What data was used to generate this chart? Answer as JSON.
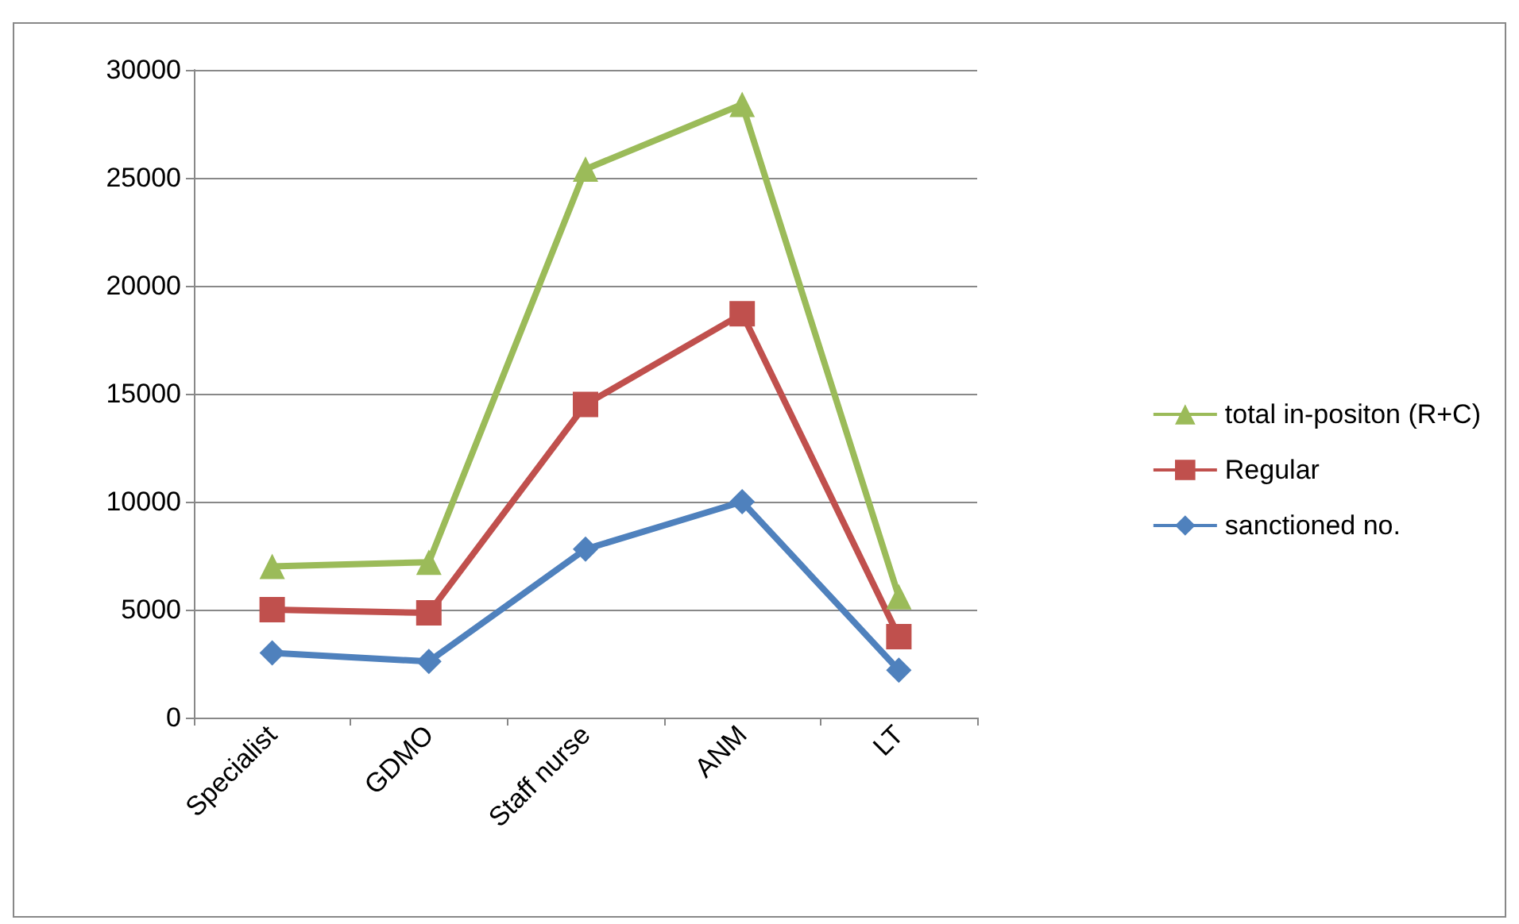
{
  "chart_data": {
    "type": "line",
    "categories": [
      "Specialist",
      "GDMO",
      "Staff nurse",
      "ANM",
      "LT"
    ],
    "series": [
      {
        "name": "total in-positon (R+C)",
        "color": "#9bbb59",
        "marker": "triangle",
        "values": [
          7000,
          7200,
          25400,
          28400,
          5600
        ]
      },
      {
        "name": "Regular",
        "color": "#c0504d",
        "marker": "square",
        "values": [
          5000,
          4850,
          14500,
          18700,
          3750
        ]
      },
      {
        "name": "sanctioned no.",
        "color": "#4f81bd",
        "marker": "diamond",
        "values": [
          3000,
          2600,
          7800,
          10000,
          2200
        ]
      }
    ],
    "ylim": [
      0,
      30000
    ],
    "yticks": [
      0,
      5000,
      10000,
      15000,
      20000,
      25000,
      30000
    ],
    "grid": "y",
    "legend": "right",
    "line_style": "solid"
  }
}
